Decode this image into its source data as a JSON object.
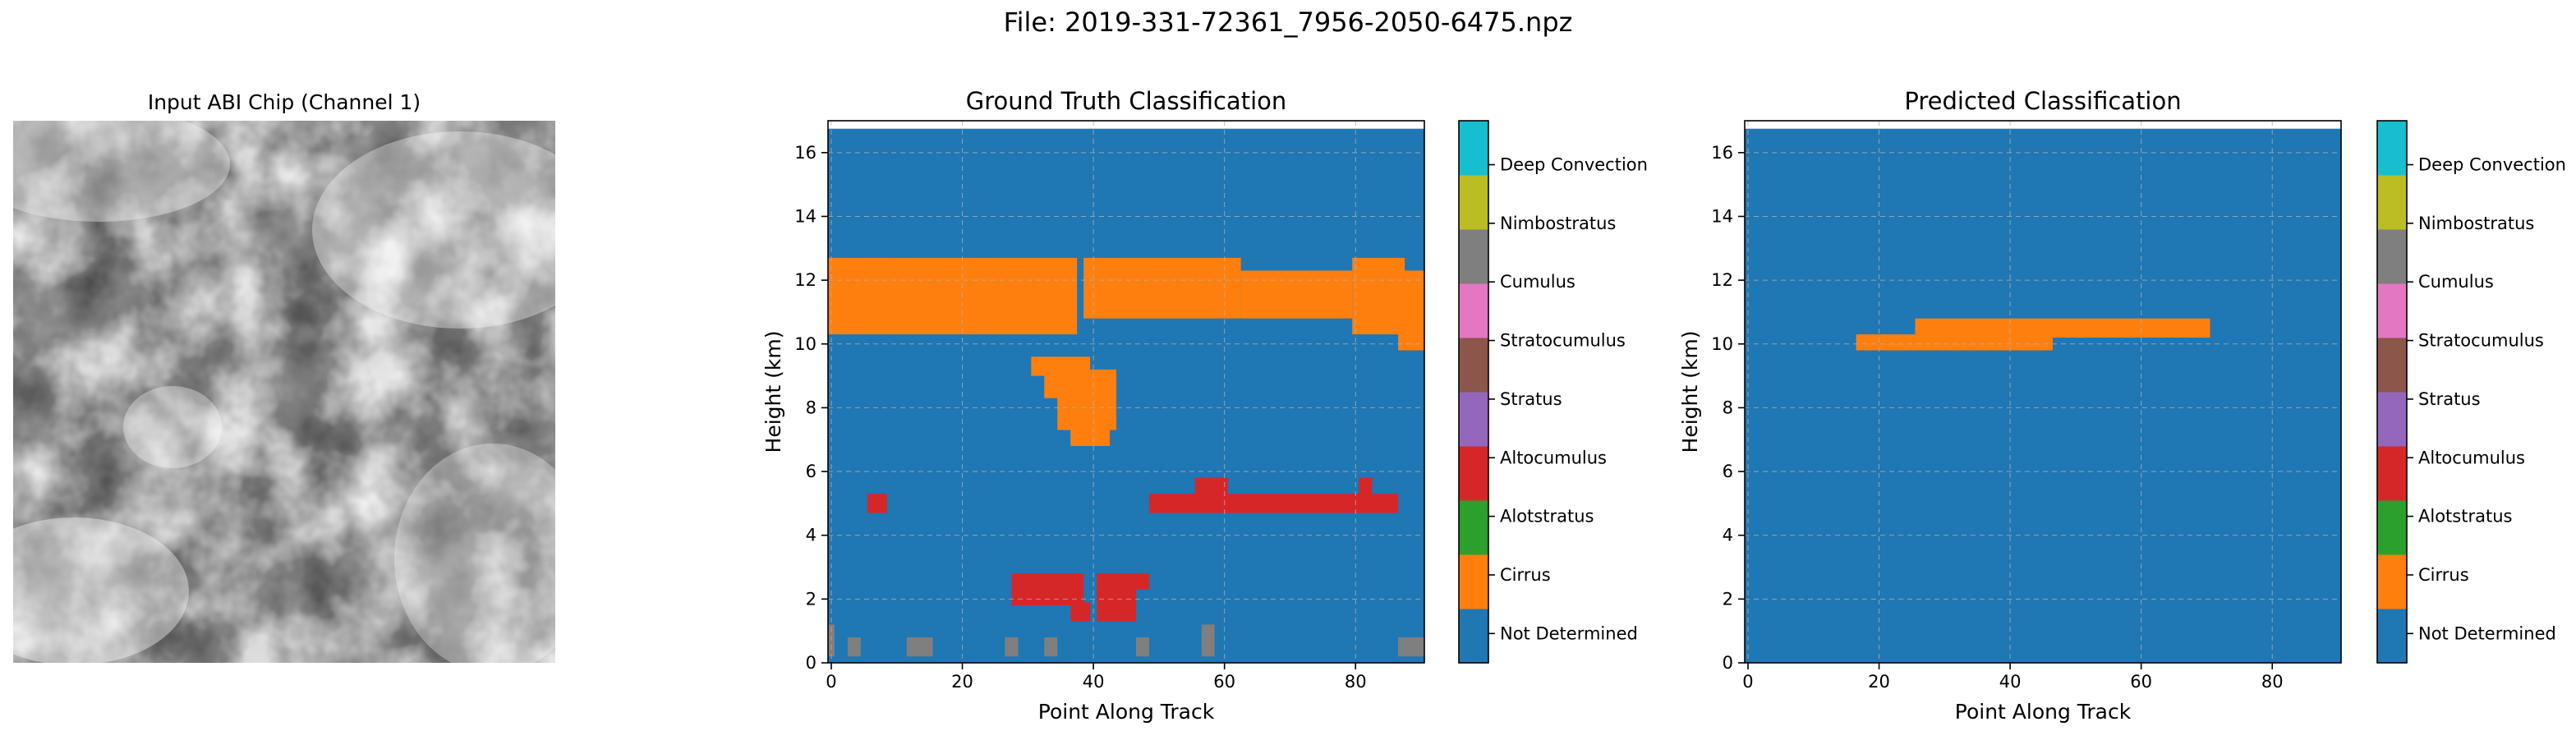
{
  "figure": {
    "title": "File: 2019-331-72361_7956-2050-6475.npz"
  },
  "panels": {
    "input": {
      "title": "Input ABI Chip (Channel 1)"
    },
    "ground_truth": {
      "title": "Ground Truth Classification",
      "xlabel": "Point Along Track",
      "ylabel": "Height (km)"
    },
    "predicted": {
      "title": "Predicted Classification",
      "xlabel": "Point Along Track",
      "ylabel": "Height (km)"
    }
  },
  "colorbar": {
    "labels": [
      "Not Determined",
      "Cirrus",
      "Alotstratus",
      "Altocumulus",
      "Stratus",
      "Stratocumulus",
      "Cumulus",
      "Nimbostratus",
      "Deep Convection"
    ],
    "colors": [
      "#1f77b4",
      "#ff7f0e",
      "#2ca02c",
      "#d62728",
      "#9467bd",
      "#8c564b",
      "#e377c2",
      "#7f7f7f",
      "#bcbd22",
      "#17becf"
    ]
  },
  "chart_data": [
    {
      "type": "heatmap",
      "title": "Ground Truth Classification",
      "xlabel": "Point Along Track",
      "ylabel": "Height (km)",
      "xlim": [
        -0.5,
        90.5
      ],
      "ylim": [
        0,
        17
      ],
      "xticks": [
        0,
        20,
        40,
        60,
        80
      ],
      "yticks": [
        0,
        2,
        4,
        6,
        8,
        10,
        12,
        14,
        16
      ],
      "grid": true,
      "background_class": 0,
      "class_regions": [
        {
          "class": 1,
          "x": [
            -0.5,
            9.5
          ],
          "y": [
            10.8,
            12.7
          ]
        },
        {
          "class": 1,
          "x": [
            -0.5,
            37.5
          ],
          "y": [
            10.3,
            12.7
          ]
        },
        {
          "class": 1,
          "x": [
            38.5,
            62.5
          ],
          "y": [
            10.8,
            12.7
          ]
        },
        {
          "class": 1,
          "x": [
            62.5,
            70.5
          ],
          "y": [
            10.8,
            12.3
          ]
        },
        {
          "class": 1,
          "x": [
            70.5,
            79.5
          ],
          "y": [
            10.8,
            12.3
          ]
        },
        {
          "class": 1,
          "x": [
            79.5,
            87.5
          ],
          "y": [
            10.3,
            12.7
          ]
        },
        {
          "class": 1,
          "x": [
            86.5,
            90.5
          ],
          "y": [
            9.8,
            12.3
          ]
        },
        {
          "class": 1,
          "x": [
            30.5,
            39.5
          ],
          "y": [
            9.0,
            9.6
          ]
        },
        {
          "class": 1,
          "x": [
            32.5,
            43.5
          ],
          "y": [
            8.3,
            9.2
          ]
        },
        {
          "class": 1,
          "x": [
            34.5,
            43.5
          ],
          "y": [
            7.3,
            8.5
          ]
        },
        {
          "class": 1,
          "x": [
            36.5,
            42.5
          ],
          "y": [
            6.8,
            7.5
          ]
        },
        {
          "class": 3,
          "x": [
            5.5,
            8.5
          ],
          "y": [
            4.7,
            5.3
          ]
        },
        {
          "class": 3,
          "x": [
            48.5,
            86.5
          ],
          "y": [
            4.7,
            5.3
          ]
        },
        {
          "class": 3,
          "x": [
            55.5,
            60.5
          ],
          "y": [
            5.1,
            5.8
          ]
        },
        {
          "class": 3,
          "x": [
            80.5,
            82.5
          ],
          "y": [
            5.1,
            5.8
          ]
        },
        {
          "class": 3,
          "x": [
            27.5,
            38.5
          ],
          "y": [
            1.8,
            2.8
          ]
        },
        {
          "class": 3,
          "x": [
            40.5,
            48.5
          ],
          "y": [
            2.3,
            2.8
          ]
        },
        {
          "class": 3,
          "x": [
            36.5,
            39.5
          ],
          "y": [
            1.3,
            1.9
          ]
        },
        {
          "class": 3,
          "x": [
            40.5,
            46.5
          ],
          "y": [
            1.3,
            2.4
          ]
        },
        {
          "class": 7,
          "x": [
            -0.5,
            0.5
          ],
          "y": [
            0.2,
            1.2
          ]
        },
        {
          "class": 7,
          "x": [
            2.5,
            4.5
          ],
          "y": [
            0.2,
            0.8
          ]
        },
        {
          "class": 7,
          "x": [
            11.5,
            15.5
          ],
          "y": [
            0.2,
            0.8
          ]
        },
        {
          "class": 7,
          "x": [
            26.5,
            28.5
          ],
          "y": [
            0.2,
            0.8
          ]
        },
        {
          "class": 7,
          "x": [
            32.5,
            34.5
          ],
          "y": [
            0.2,
            0.8
          ]
        },
        {
          "class": 7,
          "x": [
            46.5,
            48.5
          ],
          "y": [
            0.2,
            0.8
          ]
        },
        {
          "class": 7,
          "x": [
            56.5,
            58.5
          ],
          "y": [
            0.2,
            1.2
          ]
        },
        {
          "class": 7,
          "x": [
            86.5,
            90.5
          ],
          "y": [
            0.2,
            0.8
          ]
        }
      ]
    },
    {
      "type": "heatmap",
      "title": "Predicted Classification",
      "xlabel": "Point Along Track",
      "ylabel": "Height (km)",
      "xlim": [
        -0.5,
        90.5
      ],
      "ylim": [
        0,
        17
      ],
      "xticks": [
        0,
        20,
        40,
        60,
        80
      ],
      "yticks": [
        0,
        2,
        4,
        6,
        8,
        10,
        12,
        14,
        16
      ],
      "grid": true,
      "background_class": 0,
      "class_regions": [
        {
          "class": 1,
          "x": [
            16.5,
            46.5
          ],
          "y": [
            9.8,
            10.3
          ]
        },
        {
          "class": 1,
          "x": [
            25.5,
            70.5
          ],
          "y": [
            10.2,
            10.8
          ]
        }
      ]
    }
  ]
}
